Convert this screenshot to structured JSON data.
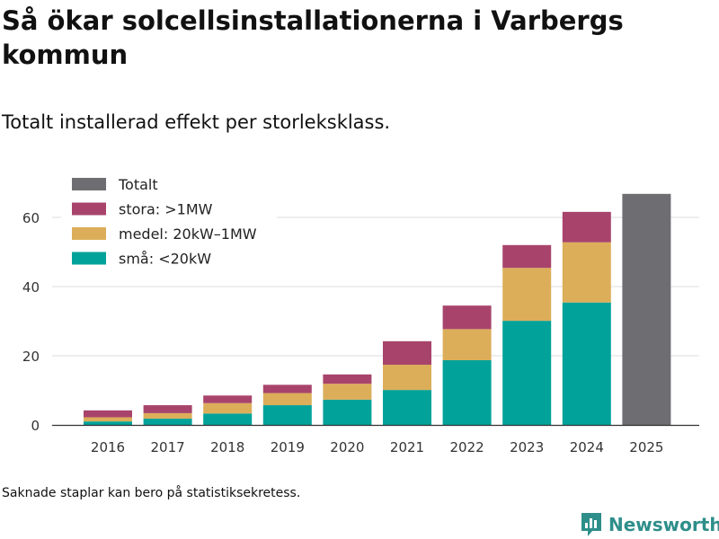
{
  "title": "Så ökar solcellsinstallationerna i Varbergs kommun",
  "subtitle": "Totalt installerad effekt per storleksklass.",
  "footnote": "Saknade staplar kan bero på statistiksekretess.",
  "brand": {
    "name": "Newsworthy",
    "color": "#2e8e8a"
  },
  "chart_data": {
    "type": "bar",
    "stacked": true,
    "title": "Så ökar solcellsinstallationerna i Varbergs kommun",
    "subtitle": "Totalt installerad effekt per storleksklass.",
    "xlabel": "",
    "ylabel": "",
    "ylim": [
      0,
      70
    ],
    "yticks": [
      0,
      20,
      40,
      60
    ],
    "grid": true,
    "legend_position": "top-left",
    "categories": [
      "2016",
      "2017",
      "2018",
      "2019",
      "2020",
      "2021",
      "2022",
      "2023",
      "2024",
      "2025"
    ],
    "series": [
      {
        "name": "små: <20kW",
        "color": "#00a29a",
        "values": [
          1.0,
          1.8,
          3.3,
          5.7,
          7.3,
          10.1,
          18.7,
          30.1,
          35.4,
          null
        ]
      },
      {
        "name": "medel: 20kW–1MW",
        "color": "#dcae5a",
        "values": [
          1.2,
          1.6,
          3.0,
          3.5,
          4.6,
          7.3,
          9.0,
          15.3,
          17.4,
          null
        ]
      },
      {
        "name": "stora: >1MW",
        "color": "#a8446c",
        "values": [
          2.0,
          2.3,
          2.2,
          2.4,
          2.7,
          6.8,
          6.8,
          6.6,
          8.8,
          null
        ]
      },
      {
        "name": "Totalt",
        "color": "#6e6d72",
        "values": [
          null,
          null,
          null,
          null,
          null,
          null,
          null,
          null,
          null,
          66.8
        ]
      }
    ],
    "legend_order": [
      "Totalt",
      "stora: >1MW",
      "medel: 20kW–1MW",
      "små: <20kW"
    ]
  }
}
